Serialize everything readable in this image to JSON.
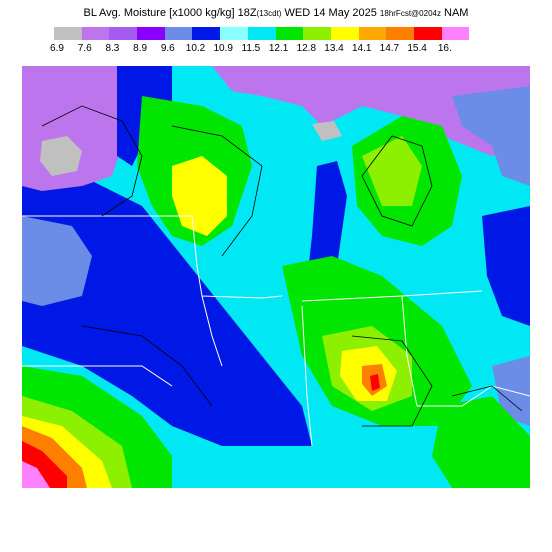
{
  "title": {
    "main": "BL Avg. Moisture [x1000 kg/kg] 18Z",
    "local": "(13cdt)",
    "date": "WED 14 May 2025",
    "forecast": "18hrFcst@0204z",
    "model": "NAM"
  },
  "legend": {
    "labels": [
      "6.9",
      "7.6",
      "8.3",
      "8.9",
      "9.6",
      "10.2",
      "10.9",
      "11.5",
      "12.1",
      "12.8",
      "13.4",
      "14.1",
      "14.7",
      "15.4",
      "16."
    ],
    "colors": [
      "#c0c0c0",
      "#bd75ee",
      "#a65bf0",
      "#8a00ff",
      "#6b8de8",
      "#0018e6",
      "#8affff",
      "#00e8f4",
      "#00e600",
      "#8cf000",
      "#ffff00",
      "#ffa800",
      "#ff8000",
      "#ff0000",
      "#ff80ff"
    ]
  },
  "map_colors": {
    "land_moist": "#00e8f4",
    "dark_blue": "#0018e6",
    "mid_blue": "#6b8de8",
    "purple": "#bd75ee",
    "grey": "#c0c0c0",
    "green": "#00e600",
    "light_green": "#8cf000",
    "yellow": "#ffff00",
    "orange": "#ff8000",
    "red": "#ff0000",
    "pink": "#ff80ff",
    "boundary": "#ffffff",
    "contour": "#000000"
  }
}
